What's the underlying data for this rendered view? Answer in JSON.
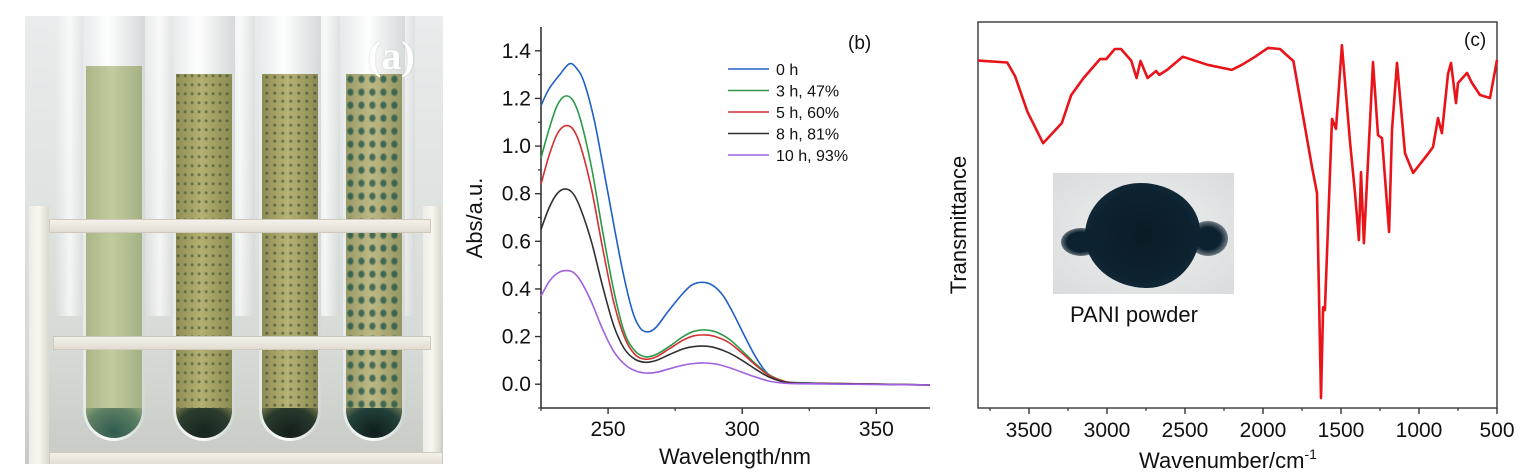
{
  "panels": {
    "a": {
      "label": "(a)",
      "description": "Photo of four test tubes in a white rack showing green polymer particles forming over time"
    },
    "b": {
      "label": "(b)"
    },
    "c": {
      "label": "(c)",
      "inset_caption": "PANI powder"
    }
  },
  "chart_data": [
    {
      "id": "b",
      "type": "line",
      "title": "",
      "xlabel": "Wavelength/nm",
      "ylabel": "Abs/a.u.",
      "xlim": [
        225,
        370
      ],
      "ylim": [
        -0.1,
        1.5
      ],
      "xticks": [
        250,
        300,
        350
      ],
      "yticks": [
        0.0,
        0.2,
        0.4,
        0.6,
        0.8,
        1.0,
        1.2,
        1.4
      ],
      "ytick_labels": [
        "0.0",
        "0.2",
        "0.4",
        "0.6",
        "0.8",
        "1.0",
        "1.2",
        "1.4"
      ],
      "legend_position": "top-right",
      "grid": false,
      "series": [
        {
          "name": "0 h",
          "color": "#1f5fc8",
          "points": [
            [
              225,
              1.17
            ],
            [
              228,
              1.24
            ],
            [
              232,
              1.3
            ],
            [
              235.5,
              1.345
            ],
            [
              238,
              1.33
            ],
            [
              241,
              1.27
            ],
            [
              245,
              1.1
            ],
            [
              250,
              0.8
            ],
            [
              255,
              0.5
            ],
            [
              259,
              0.31
            ],
            [
              262,
              0.235
            ],
            [
              265,
              0.22
            ],
            [
              268,
              0.24
            ],
            [
              272,
              0.3
            ],
            [
              277,
              0.37
            ],
            [
              281,
              0.415
            ],
            [
              285,
              0.428
            ],
            [
              289,
              0.415
            ],
            [
              293,
              0.37
            ],
            [
              297,
              0.29
            ],
            [
              301,
              0.2
            ],
            [
              305,
              0.115
            ],
            [
              309,
              0.05
            ],
            [
              313,
              0.02
            ],
            [
              318,
              0.008
            ],
            [
              330,
              0.004
            ],
            [
              350,
              0.0
            ],
            [
              370,
              -0.004
            ]
          ]
        },
        {
          "name": "3 h, 47%",
          "color": "#2a9a4a",
          "points": [
            [
              225,
              0.95
            ],
            [
              228,
              1.07
            ],
            [
              231,
              1.17
            ],
            [
              234,
              1.21
            ],
            [
              237,
              1.19
            ],
            [
              240,
              1.1
            ],
            [
              244,
              0.9
            ],
            [
              248,
              0.64
            ],
            [
              252,
              0.4
            ],
            [
              256,
              0.22
            ],
            [
              260,
              0.14
            ],
            [
              264,
              0.115
            ],
            [
              268,
              0.125
            ],
            [
              273,
              0.16
            ],
            [
              278,
              0.2
            ],
            [
              282,
              0.222
            ],
            [
              286,
              0.228
            ],
            [
              290,
              0.22
            ],
            [
              295,
              0.19
            ],
            [
              300,
              0.14
            ],
            [
              305,
              0.085
            ],
            [
              310,
              0.04
            ],
            [
              315,
              0.015
            ],
            [
              320,
              0.006
            ],
            [
              340,
              0.002
            ],
            [
              370,
              -0.003
            ]
          ]
        },
        {
          "name": "5 h, 60%",
          "color": "#d43030",
          "points": [
            [
              225,
              0.84
            ],
            [
              228,
              0.96
            ],
            [
              231,
              1.05
            ],
            [
              234,
              1.085
            ],
            [
              237,
              1.07
            ],
            [
              240,
              0.99
            ],
            [
              244,
              0.81
            ],
            [
              248,
              0.57
            ],
            [
              252,
              0.35
            ],
            [
              256,
              0.2
            ],
            [
              260,
              0.125
            ],
            [
              264,
              0.105
            ],
            [
              268,
              0.115
            ],
            [
              273,
              0.15
            ],
            [
              278,
              0.185
            ],
            [
              282,
              0.203
            ],
            [
              286,
              0.207
            ],
            [
              290,
              0.2
            ],
            [
              295,
              0.175
            ],
            [
              300,
              0.13
            ],
            [
              305,
              0.08
            ],
            [
              310,
              0.037
            ],
            [
              315,
              0.014
            ],
            [
              320,
              0.005
            ],
            [
              340,
              0.002
            ],
            [
              370,
              -0.003
            ]
          ]
        },
        {
          "name": "8 h, 81%",
          "color": "#303030",
          "points": [
            [
              225,
              0.65
            ],
            [
              228,
              0.74
            ],
            [
              231,
              0.8
            ],
            [
              234,
              0.82
            ],
            [
              237,
              0.8
            ],
            [
              240,
              0.73
            ],
            [
              244,
              0.59
            ],
            [
              248,
              0.41
            ],
            [
              252,
              0.25
            ],
            [
              256,
              0.15
            ],
            [
              260,
              0.105
            ],
            [
              264,
              0.092
            ],
            [
              268,
              0.1
            ],
            [
              273,
              0.125
            ],
            [
              278,
              0.148
            ],
            [
              282,
              0.158
            ],
            [
              286,
              0.16
            ],
            [
              290,
              0.153
            ],
            [
              295,
              0.132
            ],
            [
              300,
              0.1
            ],
            [
              305,
              0.063
            ],
            [
              310,
              0.03
            ],
            [
              315,
              0.011
            ],
            [
              320,
              0.004
            ],
            [
              340,
              0.001
            ],
            [
              370,
              -0.003
            ]
          ]
        },
        {
          "name": "10 h, 93%",
          "color": "#a060e0",
          "points": [
            [
              225,
              0.37
            ],
            [
              228,
              0.43
            ],
            [
              231,
              0.465
            ],
            [
              234,
              0.477
            ],
            [
              237,
              0.47
            ],
            [
              240,
              0.43
            ],
            [
              244,
              0.34
            ],
            [
              248,
              0.23
            ],
            [
              252,
              0.14
            ],
            [
              256,
              0.085
            ],
            [
              260,
              0.057
            ],
            [
              264,
              0.047
            ],
            [
              268,
              0.05
            ],
            [
              273,
              0.065
            ],
            [
              278,
              0.08
            ],
            [
              282,
              0.087
            ],
            [
              286,
              0.089
            ],
            [
              290,
              0.085
            ],
            [
              295,
              0.07
            ],
            [
              300,
              0.05
            ],
            [
              305,
              0.03
            ],
            [
              310,
              0.013
            ],
            [
              315,
              0.005
            ],
            [
              320,
              0.002
            ],
            [
              340,
              0.0
            ],
            [
              370,
              -0.003
            ]
          ]
        }
      ]
    },
    {
      "id": "c",
      "type": "line",
      "title": "",
      "xlabel": "Wavenumber/cm",
      "xlabel_superscript": "-1",
      "ylabel": "Transmittance",
      "xlim": [
        3827,
        500
      ],
      "x_reversed": true,
      "ylim": [
        0,
        100
      ],
      "y_units": "arbitrary (no tick labels shown)",
      "xticks": [
        3500,
        3000,
        2500,
        2000,
        1500,
        1000,
        500
      ],
      "grid": false,
      "series": [
        {
          "name": "PANI",
          "color": "#e8141a",
          "points": [
            [
              3827,
              90
            ],
            [
              3640,
              89.5
            ],
            [
              3590,
              86
            ],
            [
              3510,
              76.7
            ],
            [
              3410,
              68.6
            ],
            [
              3290,
              73.8
            ],
            [
              3230,
              81
            ],
            [
              3150,
              85.5
            ],
            [
              3045,
              90.4
            ],
            [
              3005,
              90.4
            ],
            [
              2950,
              93
            ],
            [
              2910,
              93
            ],
            [
              2845,
              90
            ],
            [
              2810,
              85.5
            ],
            [
              2785,
              89.9
            ],
            [
              2740,
              85.5
            ],
            [
              2685,
              87.3
            ],
            [
              2665,
              86.3
            ],
            [
              2615,
              87.6
            ],
            [
              2515,
              91
            ],
            [
              2355,
              88.9
            ],
            [
              2200,
              87.6
            ],
            [
              2135,
              88.9
            ],
            [
              2050,
              91
            ],
            [
              1968,
              93.3
            ],
            [
              1891,
              93
            ],
            [
              1828,
              90.7
            ],
            [
              1805,
              89.9
            ],
            [
              1686,
              62.4
            ],
            [
              1654,
              55.7
            ],
            [
              1628,
              2.6
            ],
            [
              1615,
              26.1
            ],
            [
              1603,
              25.4
            ],
            [
              1558,
              74.9
            ],
            [
              1532,
              72.3
            ],
            [
              1494,
              94
            ],
            [
              1442,
              68.7
            ],
            [
              1410,
              55.7
            ],
            [
              1385,
              43.5
            ],
            [
              1372,
              61.1
            ],
            [
              1353,
              42.7
            ],
            [
              1295,
              89.6
            ],
            [
              1263,
              70.7
            ],
            [
              1237,
              69.9
            ],
            [
              1192,
              45.6
            ],
            [
              1173,
              72
            ],
            [
              1141,
              89.4
            ],
            [
              1090,
              66
            ],
            [
              1038,
              60.9
            ],
            [
              949,
              65.5
            ],
            [
              910,
              67.6
            ],
            [
              878,
              75.1
            ],
            [
              853,
              71.2
            ],
            [
              814,
              86.5
            ],
            [
              795,
              89.4
            ],
            [
              763,
              79
            ],
            [
              750,
              84.2
            ],
            [
              692,
              86.8
            ],
            [
              660,
              84.2
            ],
            [
              609,
              81.1
            ],
            [
              545,
              80.3
            ],
            [
              500,
              90.2
            ]
          ]
        }
      ]
    }
  ]
}
